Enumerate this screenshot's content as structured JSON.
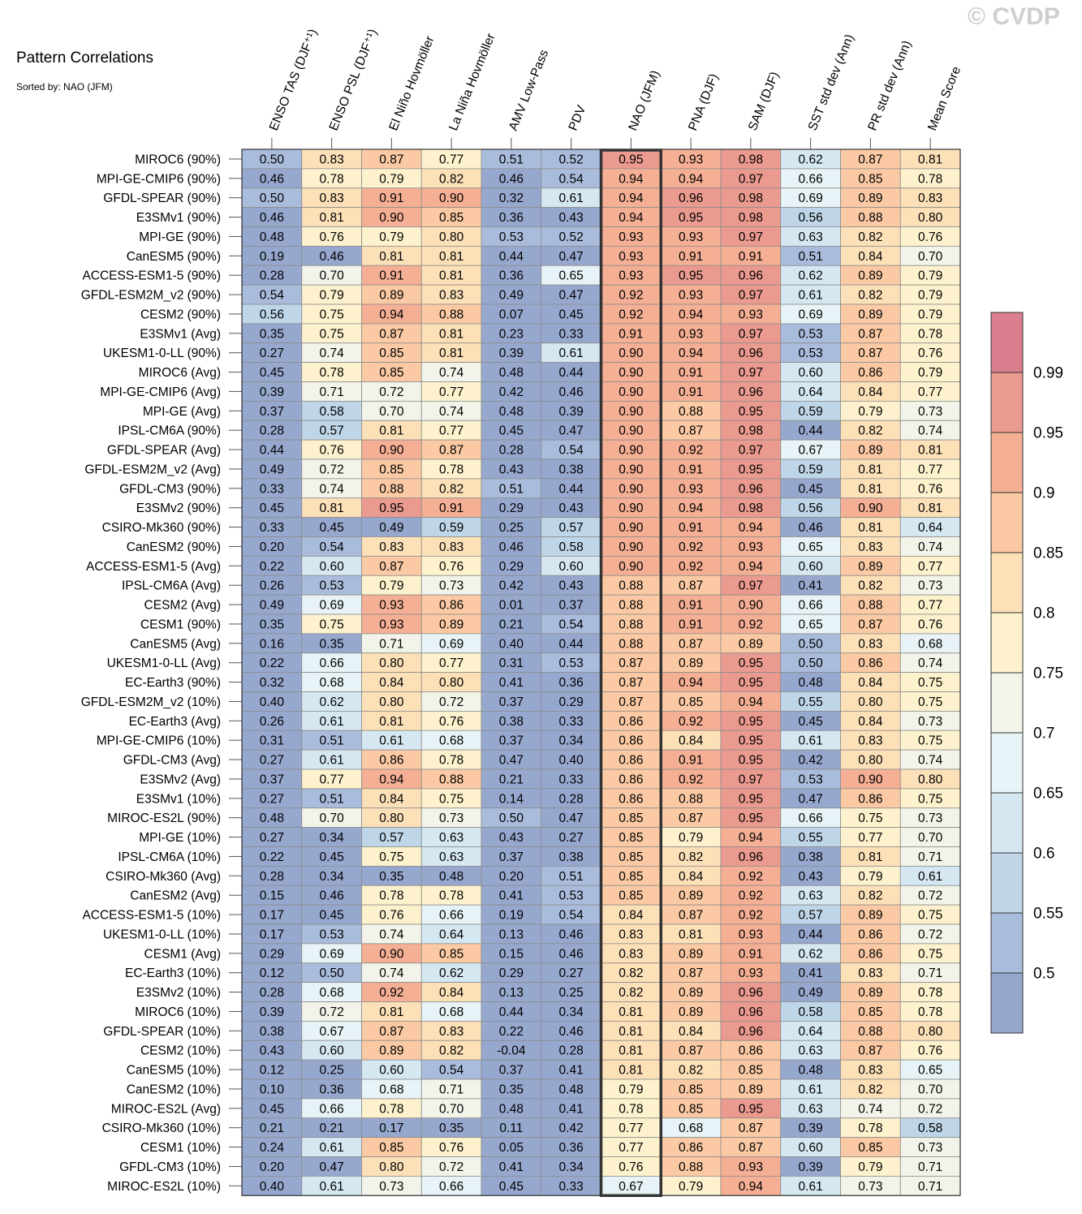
{
  "watermark": "© CVDP",
  "chart_data": {
    "type": "heatmap",
    "title": "Pattern Correlations",
    "subtitle": "Sorted by: NAO (JFM)",
    "highlight_column": "NAO (JFM)",
    "columns": [
      "ENSO TAS (DJF⁺¹)",
      "ENSO PSL (DJF⁺¹)",
      "El Niño Hovmöller",
      "La Niña Hovmöller",
      "AMV Low-Pass",
      "PDV",
      "NAO (JFM)",
      "PNA (DJF)",
      "SAM (DJF)",
      "SST std dev (Ann)",
      "PR std dev (Ann)",
      "Mean Score"
    ],
    "rows": [
      {
        "label": "MIROC6 (90%)",
        "values": [
          "0.50",
          "0.83",
          "0.87",
          "0.77",
          "0.51",
          "0.52",
          "0.95",
          "0.93",
          "0.98",
          "0.62",
          "0.87",
          "0.81"
        ]
      },
      {
        "label": "MPI-GE-CMIP6 (90%)",
        "values": [
          "0.46",
          "0.78",
          "0.79",
          "0.82",
          "0.46",
          "0.54",
          "0.94",
          "0.94",
          "0.97",
          "0.66",
          "0.85",
          "0.78"
        ]
      },
      {
        "label": "GFDL-SPEAR (90%)",
        "values": [
          "0.50",
          "0.83",
          "0.91",
          "0.90",
          "0.32",
          "0.61",
          "0.94",
          "0.96",
          "0.98",
          "0.69",
          "0.89",
          "0.83"
        ]
      },
      {
        "label": "E3SMv1 (90%)",
        "values": [
          "0.46",
          "0.81",
          "0.90",
          "0.85",
          "0.36",
          "0.43",
          "0.94",
          "0.95",
          "0.98",
          "0.56",
          "0.88",
          "0.80"
        ]
      },
      {
        "label": "MPI-GE (90%)",
        "values": [
          "0.48",
          "0.76",
          "0.79",
          "0.80",
          "0.53",
          "0.52",
          "0.93",
          "0.93",
          "0.97",
          "0.63",
          "0.82",
          "0.76"
        ]
      },
      {
        "label": "CanESM5 (90%)",
        "values": [
          "0.19",
          "0.46",
          "0.81",
          "0.81",
          "0.44",
          "0.47",
          "0.93",
          "0.91",
          "0.91",
          "0.51",
          "0.84",
          "0.70"
        ]
      },
      {
        "label": "ACCESS-ESM1-5 (90%)",
        "values": [
          "0.28",
          "0.70",
          "0.91",
          "0.81",
          "0.36",
          "0.65",
          "0.93",
          "0.95",
          "0.96",
          "0.62",
          "0.89",
          "0.79"
        ]
      },
      {
        "label": "GFDL-ESM2M_v2 (90%)",
        "values": [
          "0.54",
          "0.79",
          "0.89",
          "0.83",
          "0.49",
          "0.47",
          "0.92",
          "0.93",
          "0.97",
          "0.61",
          "0.82",
          "0.79"
        ]
      },
      {
        "label": "CESM2 (90%)",
        "values": [
          "0.56",
          "0.75",
          "0.94",
          "0.88",
          "0.07",
          "0.45",
          "0.92",
          "0.94",
          "0.93",
          "0.69",
          "0.89",
          "0.79"
        ]
      },
      {
        "label": "E3SMv1 (Avg)",
        "values": [
          "0.35",
          "0.75",
          "0.87",
          "0.81",
          "0.23",
          "0.33",
          "0.91",
          "0.93",
          "0.97",
          "0.53",
          "0.87",
          "0.78"
        ]
      },
      {
        "label": "UKESM1-0-LL (90%)",
        "values": [
          "0.27",
          "0.74",
          "0.85",
          "0.81",
          "0.39",
          "0.61",
          "0.90",
          "0.94",
          "0.96",
          "0.53",
          "0.87",
          "0.76"
        ]
      },
      {
        "label": "MIROC6 (Avg)",
        "values": [
          "0.45",
          "0.78",
          "0.85",
          "0.74",
          "0.48",
          "0.44",
          "0.90",
          "0.91",
          "0.97",
          "0.60",
          "0.86",
          "0.79"
        ]
      },
      {
        "label": "MPI-GE-CMIP6 (Avg)",
        "values": [
          "0.39",
          "0.71",
          "0.72",
          "0.77",
          "0.42",
          "0.46",
          "0.90",
          "0.91",
          "0.96",
          "0.64",
          "0.84",
          "0.77"
        ]
      },
      {
        "label": "MPI-GE (Avg)",
        "values": [
          "0.37",
          "0.58",
          "0.70",
          "0.74",
          "0.48",
          "0.39",
          "0.90",
          "0.88",
          "0.95",
          "0.59",
          "0.79",
          "0.73"
        ]
      },
      {
        "label": "IPSL-CM6A (90%)",
        "values": [
          "0.28",
          "0.57",
          "0.81",
          "0.77",
          "0.45",
          "0.47",
          "0.90",
          "0.87",
          "0.98",
          "0.44",
          "0.82",
          "0.74"
        ]
      },
      {
        "label": "GFDL-SPEAR (Avg)",
        "values": [
          "0.44",
          "0.76",
          "0.90",
          "0.87",
          "0.28",
          "0.54",
          "0.90",
          "0.92",
          "0.97",
          "0.67",
          "0.89",
          "0.81"
        ]
      },
      {
        "label": "GFDL-ESM2M_v2 (Avg)",
        "values": [
          "0.49",
          "0.72",
          "0.85",
          "0.78",
          "0.43",
          "0.38",
          "0.90",
          "0.91",
          "0.95",
          "0.59",
          "0.81",
          "0.77"
        ]
      },
      {
        "label": "GFDL-CM3 (90%)",
        "values": [
          "0.33",
          "0.74",
          "0.88",
          "0.82",
          "0.51",
          "0.44",
          "0.90",
          "0.93",
          "0.96",
          "0.45",
          "0.81",
          "0.76"
        ]
      },
      {
        "label": "E3SMv2 (90%)",
        "values": [
          "0.45",
          "0.81",
          "0.95",
          "0.91",
          "0.29",
          "0.43",
          "0.90",
          "0.94",
          "0.98",
          "0.56",
          "0.90",
          "0.81"
        ]
      },
      {
        "label": "CSIRO-Mk360 (90%)",
        "values": [
          "0.33",
          "0.45",
          "0.49",
          "0.59",
          "0.25",
          "0.57",
          "0.90",
          "0.91",
          "0.94",
          "0.46",
          "0.81",
          "0.64"
        ]
      },
      {
        "label": "CanESM2 (90%)",
        "values": [
          "0.20",
          "0.54",
          "0.83",
          "0.83",
          "0.46",
          "0.58",
          "0.90",
          "0.92",
          "0.93",
          "0.65",
          "0.83",
          "0.74"
        ]
      },
      {
        "label": "ACCESS-ESM1-5 (Avg)",
        "values": [
          "0.22",
          "0.60",
          "0.87",
          "0.76",
          "0.29",
          "0.60",
          "0.90",
          "0.92",
          "0.94",
          "0.60",
          "0.89",
          "0.77"
        ]
      },
      {
        "label": "IPSL-CM6A (Avg)",
        "values": [
          "0.26",
          "0.53",
          "0.79",
          "0.73",
          "0.42",
          "0.43",
          "0.88",
          "0.87",
          "0.97",
          "0.41",
          "0.82",
          "0.73"
        ]
      },
      {
        "label": "CESM2 (Avg)",
        "values": [
          "0.49",
          "0.69",
          "0.93",
          "0.86",
          "0.01",
          "0.37",
          "0.88",
          "0.91",
          "0.90",
          "0.66",
          "0.88",
          "0.77"
        ]
      },
      {
        "label": "CESM1 (90%)",
        "values": [
          "0.35",
          "0.75",
          "0.93",
          "0.89",
          "0.21",
          "0.54",
          "0.88",
          "0.91",
          "0.92",
          "0.65",
          "0.87",
          "0.76"
        ]
      },
      {
        "label": "CanESM5 (Avg)",
        "values": [
          "0.16",
          "0.35",
          "0.71",
          "0.69",
          "0.40",
          "0.44",
          "0.88",
          "0.87",
          "0.89",
          "0.50",
          "0.83",
          "0.68"
        ]
      },
      {
        "label": "UKESM1-0-LL (Avg)",
        "values": [
          "0.22",
          "0.66",
          "0.80",
          "0.77",
          "0.31",
          "0.53",
          "0.87",
          "0.89",
          "0.95",
          "0.50",
          "0.86",
          "0.74"
        ]
      },
      {
        "label": "EC-Earth3 (90%)",
        "values": [
          "0.32",
          "0.68",
          "0.84",
          "0.80",
          "0.41",
          "0.36",
          "0.87",
          "0.94",
          "0.95",
          "0.48",
          "0.84",
          "0.75"
        ]
      },
      {
        "label": "GFDL-ESM2M_v2 (10%)",
        "values": [
          "0.40",
          "0.62",
          "0.80",
          "0.72",
          "0.37",
          "0.29",
          "0.87",
          "0.85",
          "0.94",
          "0.55",
          "0.80",
          "0.75"
        ]
      },
      {
        "label": "EC-Earth3 (Avg)",
        "values": [
          "0.26",
          "0.61",
          "0.81",
          "0.76",
          "0.38",
          "0.33",
          "0.86",
          "0.92",
          "0.95",
          "0.45",
          "0.84",
          "0.73"
        ]
      },
      {
        "label": "MPI-GE-CMIP6 (10%)",
        "values": [
          "0.31",
          "0.51",
          "0.61",
          "0.68",
          "0.37",
          "0.34",
          "0.86",
          "0.84",
          "0.95",
          "0.61",
          "0.83",
          "0.75"
        ]
      },
      {
        "label": "GFDL-CM3 (Avg)",
        "values": [
          "0.27",
          "0.61",
          "0.86",
          "0.78",
          "0.47",
          "0.40",
          "0.86",
          "0.91",
          "0.95",
          "0.42",
          "0.80",
          "0.74"
        ]
      },
      {
        "label": "E3SMv2 (Avg)",
        "values": [
          "0.37",
          "0.77",
          "0.94",
          "0.88",
          "0.21",
          "0.33",
          "0.86",
          "0.92",
          "0.97",
          "0.53",
          "0.90",
          "0.80"
        ]
      },
      {
        "label": "E3SMv1 (10%)",
        "values": [
          "0.27",
          "0.51",
          "0.84",
          "0.75",
          "0.14",
          "0.28",
          "0.86",
          "0.88",
          "0.95",
          "0.47",
          "0.86",
          "0.75"
        ]
      },
      {
        "label": "MIROC-ES2L (90%)",
        "values": [
          "0.48",
          "0.70",
          "0.80",
          "0.73",
          "0.50",
          "0.47",
          "0.85",
          "0.87",
          "0.95",
          "0.66",
          "0.75",
          "0.73"
        ]
      },
      {
        "label": "MPI-GE (10%)",
        "values": [
          "0.27",
          "0.34",
          "0.57",
          "0.63",
          "0.43",
          "0.27",
          "0.85",
          "0.79",
          "0.94",
          "0.55",
          "0.77",
          "0.70"
        ]
      },
      {
        "label": "IPSL-CM6A (10%)",
        "values": [
          "0.22",
          "0.45",
          "0.75",
          "0.63",
          "0.37",
          "0.38",
          "0.85",
          "0.82",
          "0.96",
          "0.38",
          "0.81",
          "0.71"
        ]
      },
      {
        "label": "CSIRO-Mk360 (Avg)",
        "values": [
          "0.28",
          "0.34",
          "0.35",
          "0.48",
          "0.20",
          "0.51",
          "0.85",
          "0.84",
          "0.92",
          "0.43",
          "0.79",
          "0.61"
        ]
      },
      {
        "label": "CanESM2 (Avg)",
        "values": [
          "0.15",
          "0.46",
          "0.78",
          "0.78",
          "0.41",
          "0.53",
          "0.85",
          "0.89",
          "0.92",
          "0.63",
          "0.82",
          "0.72"
        ]
      },
      {
        "label": "ACCESS-ESM1-5 (10%)",
        "values": [
          "0.17",
          "0.45",
          "0.76",
          "0.66",
          "0.19",
          "0.54",
          "0.84",
          "0.87",
          "0.92",
          "0.57",
          "0.89",
          "0.75"
        ]
      },
      {
        "label": "UKESM1-0-LL (10%)",
        "values": [
          "0.17",
          "0.53",
          "0.74",
          "0.64",
          "0.13",
          "0.46",
          "0.83",
          "0.81",
          "0.93",
          "0.44",
          "0.86",
          "0.72"
        ]
      },
      {
        "label": "CESM1 (Avg)",
        "values": [
          "0.29",
          "0.69",
          "0.90",
          "0.85",
          "0.15",
          "0.46",
          "0.83",
          "0.89",
          "0.91",
          "0.62",
          "0.86",
          "0.75"
        ]
      },
      {
        "label": "EC-Earth3 (10%)",
        "values": [
          "0.12",
          "0.50",
          "0.74",
          "0.62",
          "0.29",
          "0.27",
          "0.82",
          "0.87",
          "0.93",
          "0.41",
          "0.83",
          "0.71"
        ]
      },
      {
        "label": "E3SMv2 (10%)",
        "values": [
          "0.28",
          "0.68",
          "0.92",
          "0.84",
          "0.13",
          "0.25",
          "0.82",
          "0.89",
          "0.96",
          "0.49",
          "0.89",
          "0.78"
        ]
      },
      {
        "label": "MIROC6 (10%)",
        "values": [
          "0.39",
          "0.72",
          "0.81",
          "0.68",
          "0.44",
          "0.34",
          "0.81",
          "0.89",
          "0.96",
          "0.58",
          "0.85",
          "0.78"
        ]
      },
      {
        "label": "GFDL-SPEAR (10%)",
        "values": [
          "0.38",
          "0.67",
          "0.87",
          "0.83",
          "0.22",
          "0.46",
          "0.81",
          "0.84",
          "0.96",
          "0.64",
          "0.88",
          "0.80"
        ]
      },
      {
        "label": "CESM2 (10%)",
        "values": [
          "0.43",
          "0.60",
          "0.89",
          "0.82",
          "-0.04",
          "0.28",
          "0.81",
          "0.87",
          "0.86",
          "0.63",
          "0.87",
          "0.76"
        ]
      },
      {
        "label": "CanESM5 (10%)",
        "values": [
          "0.12",
          "0.25",
          "0.60",
          "0.54",
          "0.37",
          "0.41",
          "0.81",
          "0.82",
          "0.85",
          "0.48",
          "0.83",
          "0.65"
        ]
      },
      {
        "label": "CanESM2 (10%)",
        "values": [
          "0.10",
          "0.36",
          "0.68",
          "0.71",
          "0.35",
          "0.48",
          "0.79",
          "0.85",
          "0.89",
          "0.61",
          "0.82",
          "0.70"
        ]
      },
      {
        "label": "MIROC-ES2L (Avg)",
        "values": [
          "0.45",
          "0.66",
          "0.78",
          "0.70",
          "0.48",
          "0.41",
          "0.78",
          "0.85",
          "0.95",
          "0.63",
          "0.74",
          "0.72"
        ]
      },
      {
        "label": "CSIRO-Mk360 (10%)",
        "values": [
          "0.21",
          "0.21",
          "0.17",
          "0.35",
          "0.11",
          "0.42",
          "0.77",
          "0.68",
          "0.87",
          "0.39",
          "0.78",
          "0.58"
        ]
      },
      {
        "label": "CESM1 (10%)",
        "values": [
          "0.24",
          "0.61",
          "0.85",
          "0.76",
          "0.05",
          "0.36",
          "0.77",
          "0.86",
          "0.87",
          "0.60",
          "0.85",
          "0.73"
        ]
      },
      {
        "label": "GFDL-CM3 (10%)",
        "values": [
          "0.20",
          "0.47",
          "0.80",
          "0.72",
          "0.41",
          "0.34",
          "0.76",
          "0.88",
          "0.93",
          "0.39",
          "0.79",
          "0.71"
        ]
      },
      {
        "label": "MIROC-ES2L (10%)",
        "values": [
          "0.40",
          "0.61",
          "0.73",
          "0.66",
          "0.45",
          "0.33",
          "0.67",
          "0.79",
          "0.94",
          "0.61",
          "0.73",
          "0.71"
        ]
      }
    ],
    "colorbar": {
      "boundaries": [
        0.5,
        0.55,
        0.6,
        0.65,
        0.7,
        0.75,
        0.8,
        0.85,
        0.9,
        0.95,
        0.99
      ],
      "tick_labels": [
        "0.5",
        "0.55",
        "0.6",
        "0.65",
        "0.7",
        "0.75",
        "0.8",
        "0.85",
        "0.9",
        "0.95",
        "0.99"
      ],
      "colors": [
        "#97a8cf",
        "#aabcdc",
        "#bed6e8",
        "#d5e8f1",
        "#e7f3f6",
        "#f2f3e9",
        "#fdf2cd",
        "#fce0b8",
        "#fbcaa4",
        "#f5af94",
        "#eb9a8f",
        "#d97f8e"
      ]
    }
  }
}
